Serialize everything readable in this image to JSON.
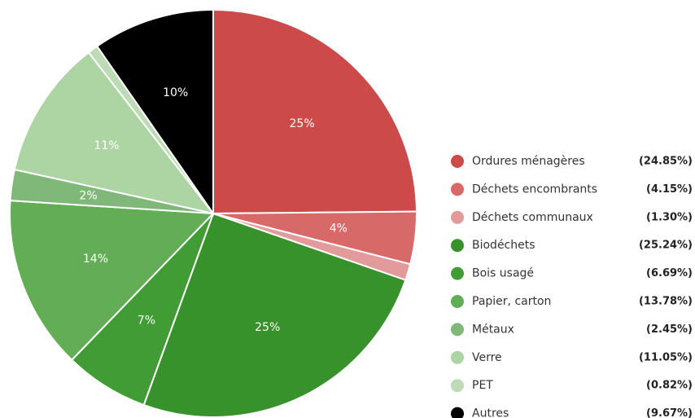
{
  "chart_data": {
    "type": "pie",
    "categories": [
      "Ordures ménagères",
      "Déchets encombrants",
      "Déchets communaux",
      "Biodéchets",
      "Bois usagé",
      "Papier, carton",
      "Métaux",
      "Verre",
      "PET",
      "Autres"
    ],
    "values": [
      24.85,
      4.15,
      1.3,
      25.24,
      6.69,
      13.78,
      2.45,
      11.05,
      0.82,
      9.67
    ],
    "value_labels": [
      "25%",
      "4%",
      null,
      "25%",
      "7%",
      "14%",
      "2%",
      "11%",
      null,
      "10%"
    ],
    "legend_labels": [
      "(24.85%)",
      "(4.15%)",
      "(1.30%)",
      "(25.24%)",
      "(6.69%)",
      "(13.78%)",
      "(2.45%)",
      "(11.05%)",
      "(0.82%)",
      "(9.67%)"
    ],
    "colors": [
      "#cc4a4a",
      "#d86969",
      "#e29a9a",
      "#37922b",
      "#419c35",
      "#62ad56",
      "#80b879",
      "#acd5a3",
      "#bddcb5",
      "#000000"
    ],
    "legend": "right"
  }
}
